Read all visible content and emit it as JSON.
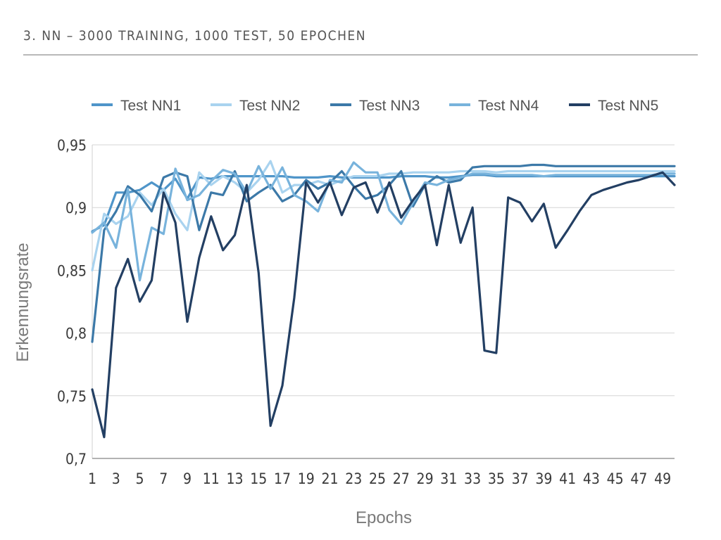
{
  "slide": {
    "title": "3. NN – 3000 TRAINING, 1000 TEST, 50 EPOCHEN"
  },
  "chart_data": {
    "type": "line",
    "xlabel": "Epochs",
    "ylabel": "Erkennungsrate",
    "ylim": [
      0.7,
      0.95
    ],
    "yticks": [
      "0,95",
      "0,9",
      "0,85",
      "0,8",
      "0,75",
      "0,7"
    ],
    "ytick_values": [
      0.95,
      0.9,
      0.85,
      0.8,
      0.75,
      0.7
    ],
    "xticks": [
      "1",
      "3",
      "5",
      "7",
      "9",
      "11",
      "13",
      "15",
      "17",
      "19",
      "21",
      "23",
      "25",
      "27",
      "29",
      "31",
      "33",
      "35",
      "37",
      "39",
      "41",
      "43",
      "45",
      "47",
      "49"
    ],
    "x": [
      1,
      2,
      3,
      4,
      5,
      6,
      7,
      8,
      9,
      10,
      11,
      12,
      13,
      14,
      15,
      16,
      17,
      18,
      19,
      20,
      21,
      22,
      23,
      24,
      25,
      26,
      27,
      28,
      29,
      30,
      31,
      32,
      33,
      34,
      35,
      36,
      37,
      38,
      39,
      40,
      41,
      42,
      43,
      44,
      45,
      46,
      47,
      48,
      49,
      50
    ],
    "grid": "horizontal",
    "legend_position": "top",
    "series": [
      {
        "name": "Test NN1",
        "color": "#4f95c9",
        "values": [
          0.881,
          0.886,
          0.912,
          0.912,
          0.914,
          0.92,
          0.914,
          0.923,
          0.907,
          0.924,
          0.923,
          0.925,
          0.925,
          0.925,
          0.925,
          0.925,
          0.925,
          0.924,
          0.924,
          0.924,
          0.925,
          0.924,
          0.924,
          0.924,
          0.924,
          0.924,
          0.925,
          0.925,
          0.925,
          0.924,
          0.924,
          0.925,
          0.926,
          0.926,
          0.925,
          0.925,
          0.925,
          0.925,
          0.925,
          0.925,
          0.925,
          0.925,
          0.925,
          0.925,
          0.925,
          0.925,
          0.925,
          0.925,
          0.925,
          0.925
        ]
      },
      {
        "name": "Test NN2",
        "color": "#a9d3ef",
        "values": [
          0.85,
          0.895,
          0.887,
          0.893,
          0.912,
          0.902,
          0.915,
          0.895,
          0.882,
          0.928,
          0.918,
          0.925,
          0.92,
          0.912,
          0.922,
          0.937,
          0.912,
          0.918,
          0.918,
          0.921,
          0.918,
          0.922,
          0.925,
          0.925,
          0.925,
          0.927,
          0.927,
          0.928,
          0.928,
          0.928,
          0.928,
          0.929,
          0.929,
          0.929,
          0.928,
          0.929,
          0.929,
          0.929,
          0.929,
          0.929,
          0.929,
          0.929,
          0.929,
          0.929,
          0.929,
          0.929,
          0.929,
          0.929,
          0.929,
          0.929
        ]
      },
      {
        "name": "Test NN3",
        "color": "#3c79a8",
        "values": [
          0.793,
          0.882,
          0.897,
          0.917,
          0.91,
          0.897,
          0.924,
          0.928,
          0.925,
          0.882,
          0.912,
          0.91,
          0.929,
          0.905,
          0.912,
          0.918,
          0.905,
          0.91,
          0.922,
          0.915,
          0.92,
          0.929,
          0.917,
          0.907,
          0.91,
          0.918,
          0.929,
          0.901,
          0.918,
          0.925,
          0.92,
          0.922,
          0.932,
          0.933,
          0.933,
          0.933,
          0.933,
          0.934,
          0.934,
          0.933,
          0.933,
          0.933,
          0.933,
          0.933,
          0.933,
          0.933,
          0.933,
          0.933,
          0.933,
          0.933
        ]
      },
      {
        "name": "Test NN4",
        "color": "#78b3dc",
        "values": [
          0.88,
          0.888,
          0.868,
          0.915,
          0.842,
          0.884,
          0.879,
          0.931,
          0.906,
          0.91,
          0.921,
          0.93,
          0.927,
          0.912,
          0.933,
          0.915,
          0.932,
          0.91,
          0.905,
          0.897,
          0.922,
          0.92,
          0.936,
          0.928,
          0.928,
          0.898,
          0.887,
          0.904,
          0.92,
          0.918,
          0.922,
          0.924,
          0.927,
          0.927,
          0.926,
          0.926,
          0.926,
          0.926,
          0.925,
          0.926,
          0.926,
          0.926,
          0.926,
          0.926,
          0.926,
          0.926,
          0.926,
          0.926,
          0.927,
          0.927
        ]
      },
      {
        "name": "Test NN5",
        "color": "#233f63",
        "values": [
          0.755,
          0.717,
          0.836,
          0.859,
          0.825,
          0.842,
          0.912,
          0.888,
          0.809,
          0.86,
          0.893,
          0.866,
          0.878,
          0.918,
          0.848,
          0.726,
          0.758,
          0.828,
          0.92,
          0.904,
          0.92,
          0.894,
          0.916,
          0.92,
          0.896,
          0.92,
          0.892,
          0.906,
          0.918,
          0.87,
          0.918,
          0.872,
          0.9,
          0.786,
          0.784,
          0.908,
          0.904,
          0.889,
          0.903,
          0.868,
          0.882,
          0.897,
          0.91,
          0.914,
          0.917,
          0.92,
          0.922,
          0.925,
          0.928,
          0.918
        ]
      }
    ]
  }
}
